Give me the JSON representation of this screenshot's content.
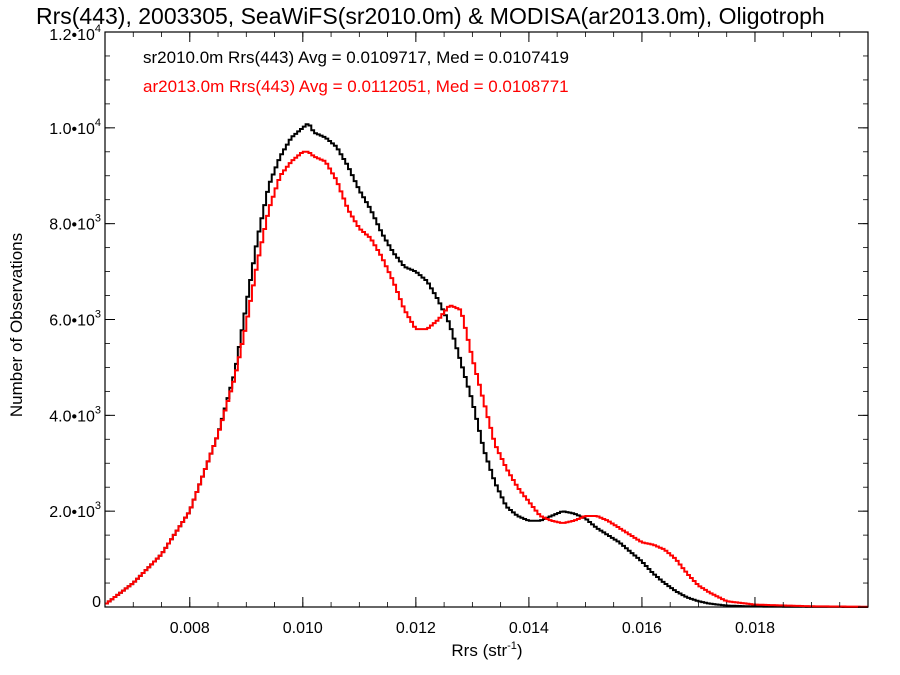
{
  "chart_data": {
    "type": "line",
    "style": "step-histogram",
    "title": "Rrs(443), 2003305, SeaWiFS(sr2010.0m) & MODISA(ar2013.0m), Oligotroph",
    "xlabel": "Rrs (str",
    "xlabel_sup": "-1",
    "xlabel_suffix": ")",
    "ylabel": "Number of Observations",
    "xlim": [
      0.0065,
      0.02
    ],
    "ylim": [
      0,
      12000
    ],
    "x_ticks": [
      {
        "value": 0.008,
        "label": "0.008"
      },
      {
        "value": 0.01,
        "label": "0.010"
      },
      {
        "value": 0.012,
        "label": "0.012"
      },
      {
        "value": 0.014,
        "label": "0.014"
      },
      {
        "value": 0.016,
        "label": "0.016"
      },
      {
        "value": 0.018,
        "label": "0.018"
      }
    ],
    "y_ticks": [
      {
        "value": 0,
        "mant": "0",
        "exp": ""
      },
      {
        "value": 2000,
        "mant": "2.0•10",
        "exp": "3"
      },
      {
        "value": 4000,
        "mant": "4.0•10",
        "exp": "3"
      },
      {
        "value": 6000,
        "mant": "6.0•10",
        "exp": "3"
      },
      {
        "value": 8000,
        "mant": "8.0•10",
        "exp": "3"
      },
      {
        "value": 10000,
        "mant": "1.0•10",
        "exp": "4"
      },
      {
        "value": 12000,
        "mant": "1.2•10",
        "exp": "4"
      }
    ],
    "legend_position": "top-left",
    "series": [
      {
        "name": "sr2010.0m",
        "legend": "sr2010.0m Rrs(443) Avg = 0.0109717, Med = 0.0107419",
        "color": "#000000",
        "x": [
          0.0065,
          0.007,
          0.0075,
          0.008,
          0.0085,
          0.0088,
          0.009,
          0.0092,
          0.0094,
          0.0096,
          0.0098,
          0.01,
          0.0101,
          0.0102,
          0.0104,
          0.0106,
          0.0108,
          0.011,
          0.0112,
          0.0114,
          0.0116,
          0.0118,
          0.012,
          0.0122,
          0.0124,
          0.0126,
          0.0128,
          0.013,
          0.0132,
          0.0134,
          0.0136,
          0.0138,
          0.014,
          0.0142,
          0.0144,
          0.0146,
          0.0148,
          0.015,
          0.0152,
          0.0154,
          0.0156,
          0.0158,
          0.016,
          0.0162,
          0.0164,
          0.0166,
          0.0168,
          0.017,
          0.0172,
          0.0175,
          0.018,
          0.019,
          0.02
        ],
        "y": [
          50,
          500,
          1100,
          2000,
          3600,
          4900,
          6300,
          7700,
          8800,
          9400,
          9800,
          10000,
          10100,
          9900,
          9800,
          9600,
          9200,
          8700,
          8300,
          7800,
          7400,
          7100,
          7000,
          6800,
          6400,
          5900,
          5100,
          4300,
          3300,
          2600,
          2100,
          1900,
          1800,
          1800,
          1900,
          2000,
          1950,
          1850,
          1650,
          1500,
          1350,
          1150,
          950,
          700,
          500,
          330,
          200,
          120,
          70,
          30,
          10,
          3,
          0
        ]
      },
      {
        "name": "ar2013.0m",
        "legend": "ar2013.0m Rrs(443) Avg = 0.0112051, Med = 0.0108771",
        "color": "#ff0000",
        "x": [
          0.0065,
          0.007,
          0.0075,
          0.008,
          0.0085,
          0.0088,
          0.009,
          0.0092,
          0.0094,
          0.0096,
          0.0098,
          0.01,
          0.0101,
          0.0102,
          0.0104,
          0.0106,
          0.0108,
          0.011,
          0.0112,
          0.0114,
          0.0116,
          0.0118,
          0.012,
          0.0122,
          0.0124,
          0.0126,
          0.0128,
          0.013,
          0.0132,
          0.0134,
          0.0136,
          0.0138,
          0.014,
          0.0142,
          0.0144,
          0.0146,
          0.0148,
          0.015,
          0.0152,
          0.0154,
          0.0156,
          0.0158,
          0.016,
          0.0162,
          0.0164,
          0.0166,
          0.0168,
          0.017,
          0.0172,
          0.0175,
          0.018,
          0.019,
          0.02
        ],
        "y": [
          50,
          500,
          1100,
          2000,
          3600,
          4800,
          5900,
          7200,
          8300,
          9000,
          9300,
          9500,
          9500,
          9400,
          9300,
          8900,
          8300,
          7900,
          7700,
          7300,
          6800,
          6200,
          5800,
          5800,
          6000,
          6300,
          6200,
          5200,
          4300,
          3400,
          2900,
          2500,
          2200,
          1900,
          1800,
          1750,
          1800,
          1900,
          1900,
          1800,
          1650,
          1500,
          1350,
          1300,
          1200,
          1000,
          700,
          450,
          300,
          120,
          50,
          15,
          5
        ]
      }
    ]
  }
}
